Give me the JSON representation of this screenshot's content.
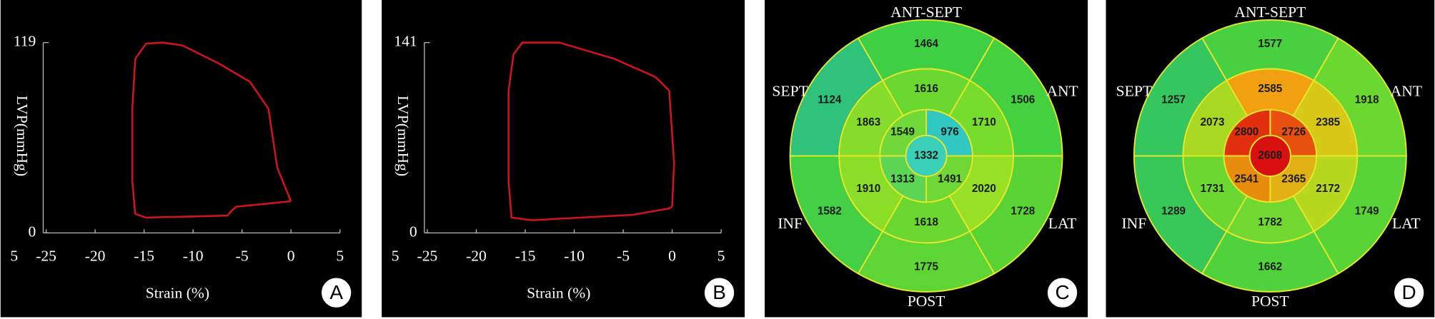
{
  "chart_data": [
    {
      "type": "line",
      "panel_label": "A",
      "y_label": "LVP(mmHg)",
      "x_label": "Strain (%)",
      "cropped_label": "5",
      "color": "#d0141c",
      "x": [
        0,
        -1.4,
        -2.3,
        -4.2,
        -7.4,
        -11.1,
        -13.1,
        -14.8,
        -15.9,
        -16.2,
        -16.2,
        -15.9,
        -14.8,
        -6.5,
        -6.0,
        -5.6,
        0
      ],
      "values": [
        19.8,
        40.8,
        77.6,
        94.6,
        106,
        117.3,
        119,
        118.4,
        108.8,
        77.6,
        32.3,
        11.9,
        9.6,
        10.8,
        14.2,
        16.4,
        19.8
      ],
      "xlim": [
        -25.3,
        5
      ],
      "xticks": [
        -25,
        -20,
        -15,
        -10,
        -5,
        0,
        5
      ],
      "ylim": [
        0,
        119
      ],
      "yticks": [
        0,
        119
      ]
    },
    {
      "type": "line",
      "panel_label": "B",
      "y_label": "LVP(mmHg)",
      "x_label": "Strain (%)",
      "cropped_label": "5",
      "color": "#d0141c",
      "x": [
        0,
        0.2,
        -0.3,
        -1.7,
        -5.9,
        -11.5,
        -15.3,
        -16.2,
        -16.7,
        -16.7,
        -16.4,
        -14.3,
        -4.0,
        -0.3,
        0
      ],
      "values": [
        19.5,
        51.7,
        105.4,
        115.5,
        129,
        141,
        141,
        132.3,
        105.4,
        38.3,
        11.4,
        9.4,
        13.4,
        18.1,
        19.5
      ],
      "xlim": [
        -25.3,
        5
      ],
      "xticks": [
        -25,
        -20,
        -15,
        -10,
        -5,
        0,
        5
      ],
      "ylim": [
        0,
        141
      ],
      "yticks": [
        0,
        141
      ]
    },
    {
      "type": "bullseye",
      "panel_label": "C",
      "wall_labels": [
        "ANT-SEPT",
        "ANT",
        "LAT",
        "POST",
        "INF",
        "SEPT"
      ],
      "basal": {
        "values": [
          1464,
          1506,
          1728,
          1775,
          1582,
          1124
        ],
        "colors": [
          "#3fcf45",
          "#45d040",
          "#5ad435",
          "#5cd535",
          "#44cf45",
          "#2fc27a"
        ]
      },
      "mid": {
        "values": [
          1616,
          1710,
          2020,
          1618,
          1910,
          1863
        ],
        "colors": [
          "#6ad830",
          "#78dc2c",
          "#98e025",
          "#6ad830",
          "#8ade28",
          "#86dc2a"
        ]
      },
      "apical": {
        "values": [
          976,
          1491,
          1313,
          1549
        ],
        "colors": [
          "#30c8c0",
          "#6fd836",
          "#5cd455",
          "#70d838"
        ]
      },
      "apex": {
        "value": 1332,
        "color": "#3acfb8"
      }
    },
    {
      "type": "bullseye",
      "panel_label": "D",
      "wall_labels": [
        "ANT-SEPT",
        "ANT",
        "LAT",
        "POST",
        "INF",
        "SEPT"
      ],
      "basal": {
        "values": [
          1577,
          1918,
          1749,
          1662,
          1289,
          1257
        ],
        "colors": [
          "#48d040",
          "#6ad830",
          "#58d438",
          "#50d23c",
          "#38c85a",
          "#36c660"
        ]
      },
      "mid": {
        "values": [
          2585,
          2385,
          2172,
          1782,
          1731,
          2073
        ],
        "colors": [
          "#f0a010",
          "#d8c818",
          "#b8d820",
          "#70d830",
          "#6ad830",
          "#a8d822"
        ]
      },
      "apical": {
        "values": [
          2726,
          2365,
          2541,
          2800
        ],
        "colors": [
          "#e85010",
          "#e0b014",
          "#e88c10",
          "#e03010"
        ]
      },
      "apex": {
        "value": 2608,
        "color": "#d81010"
      }
    }
  ]
}
